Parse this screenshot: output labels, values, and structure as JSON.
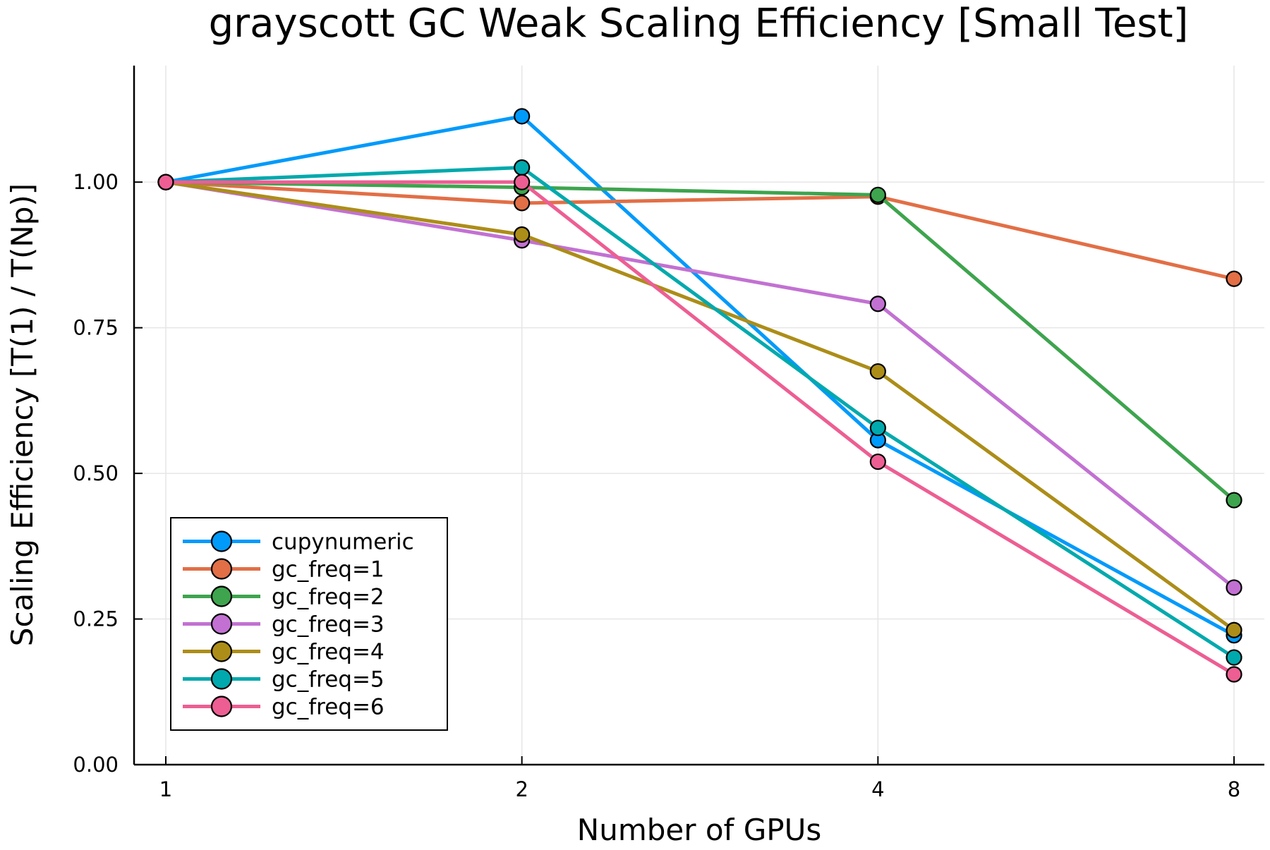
{
  "chart_data": {
    "type": "line",
    "title": "grayscott GC Weak Scaling Efficiency [Small Test]",
    "xlabel": "Number of GPUs",
    "ylabel": "Scaling Efficiency [T(1) / T(Np)]",
    "x_scale": "log2",
    "x": [
      1,
      2,
      4,
      8
    ],
    "x_tick_labels": [
      "1",
      "2",
      "4",
      "8"
    ],
    "y_ticks": [
      0.0,
      0.25,
      0.5,
      0.75,
      1.0
    ],
    "y_tick_labels": [
      "0.00",
      "0.25",
      "0.50",
      "0.75",
      "1.00"
    ],
    "ylim": [
      0.0,
      1.2
    ],
    "grid": true,
    "legend_position": "bottom-left",
    "marker": "circle",
    "series": [
      {
        "name": "cupynumeric",
        "color": "#009AFA",
        "values": [
          1.0,
          1.113,
          0.557,
          0.222
        ]
      },
      {
        "name": "gc_freq=1",
        "color": "#E26F46",
        "values": [
          1.0,
          0.964,
          0.975,
          0.834
        ]
      },
      {
        "name": "gc_freq=2",
        "color": "#3EA44E",
        "values": [
          1.0,
          0.991,
          0.978,
          0.454
        ]
      },
      {
        "name": "gc_freq=3",
        "color": "#C271D2",
        "values": [
          1.0,
          0.9,
          0.791,
          0.304
        ]
      },
      {
        "name": "gc_freq=4",
        "color": "#AC8D18",
        "values": [
          1.0,
          0.91,
          0.675,
          0.231
        ]
      },
      {
        "name": "gc_freq=5",
        "color": "#00A9AD",
        "values": [
          1.0,
          1.025,
          0.578,
          0.184
        ]
      },
      {
        "name": "gc_freq=6",
        "color": "#ED5E93",
        "values": [
          1.0,
          1.0,
          0.52,
          0.155
        ]
      }
    ]
  }
}
